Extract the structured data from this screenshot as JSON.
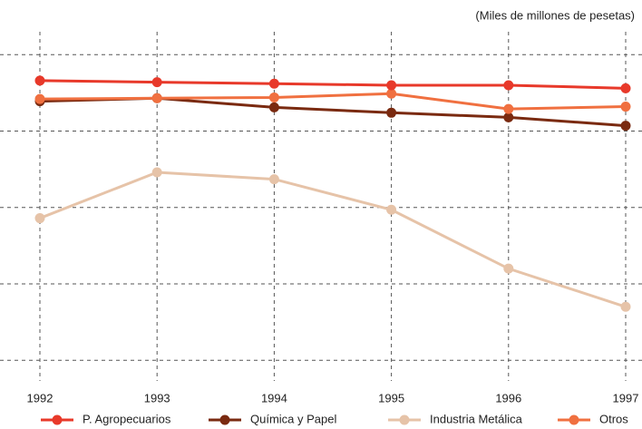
{
  "chart_data": {
    "type": "line",
    "subtitle": "(Miles de millones de pesetas)",
    "categories": [
      "1992",
      "1993",
      "1994",
      "1995",
      "1996",
      "1997"
    ],
    "series": [
      {
        "name": "P. Agropecuarios",
        "color": "#e8392a",
        "values": [
          3.66,
          3.64,
          3.62,
          3.6,
          3.6,
          3.56
        ]
      },
      {
        "name": "Química y Papel",
        "color": "#7a2a10",
        "values": [
          3.39,
          3.43,
          3.31,
          3.24,
          3.18,
          3.07
        ]
      },
      {
        "name": "Industria Metálica",
        "color": "#e6c3a8",
        "values": [
          1.86,
          2.46,
          2.37,
          1.97,
          1.2,
          0.7
        ]
      },
      {
        "name": "Otros",
        "color": "#f07040",
        "values": [
          3.42,
          3.43,
          3.44,
          3.49,
          3.29,
          3.32
        ]
      }
    ],
    "ylim": [
      -0.27,
      4.3
    ],
    "yticks": [
      0,
      1,
      2,
      3,
      4
    ],
    "grid": true
  }
}
